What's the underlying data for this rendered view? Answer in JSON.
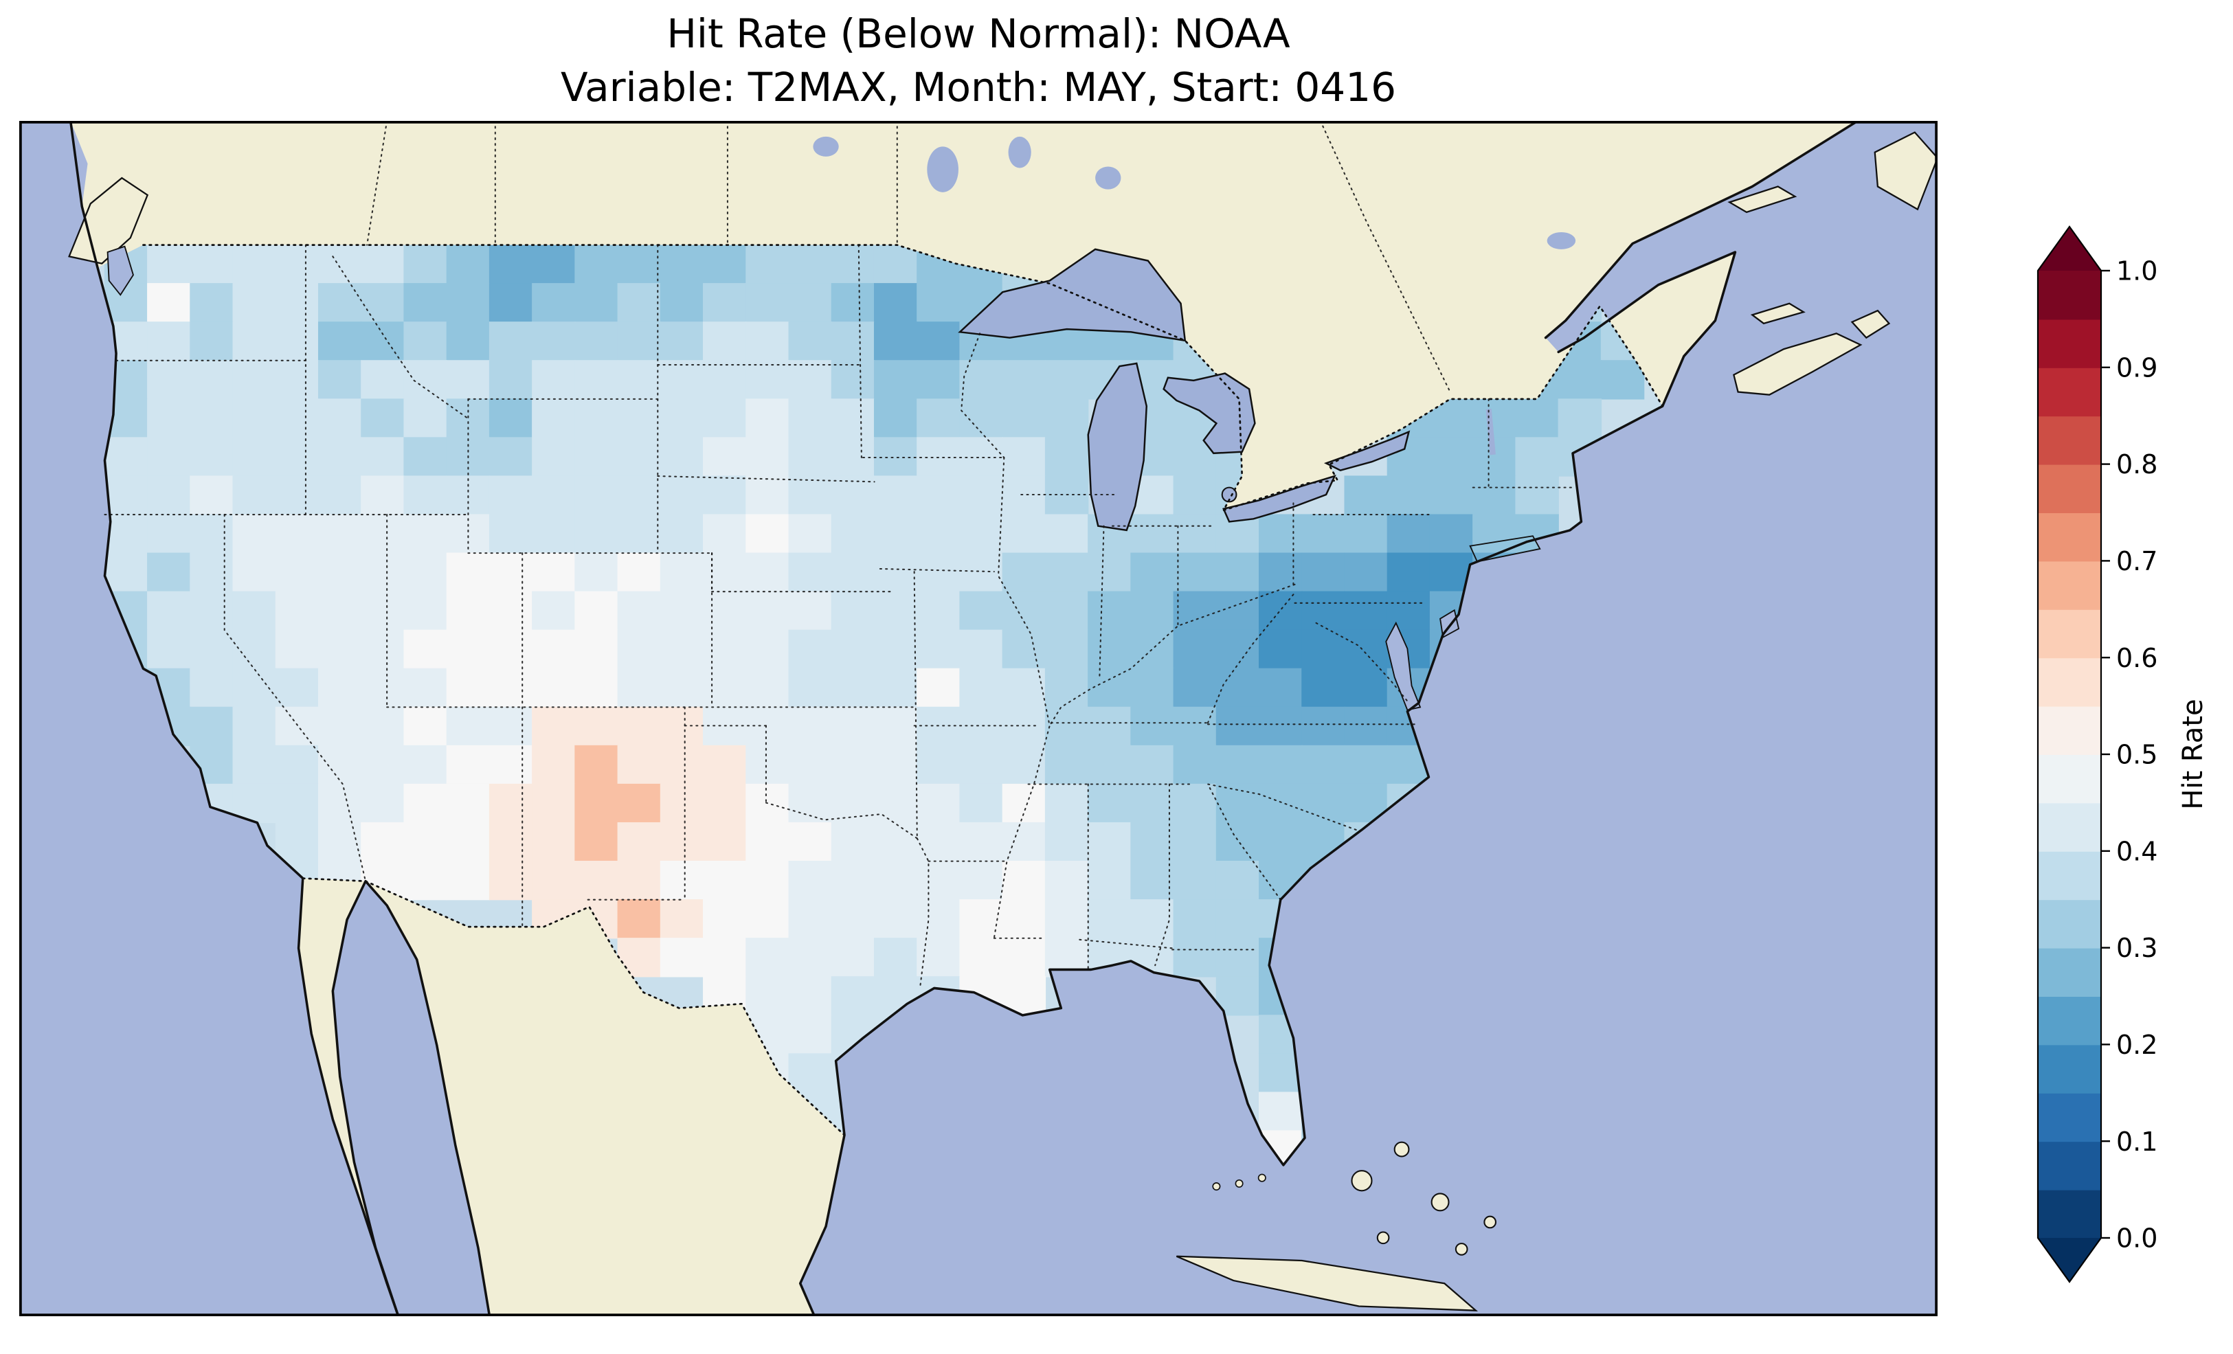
{
  "colors": {
    "background": "#ffffff",
    "ocean": "#a7b6dc",
    "land": "#f1eed6",
    "lake": "#9fb0d8",
    "coastline": "#111111",
    "state_border": "#1a1a1a",
    "text": "#000000",
    "cell_base": "#c9dfec"
  },
  "chart_data": {
    "type": "heatmap",
    "title": "Hit Rate (Below Normal): NOAA",
    "subtitle": "Variable: T2MAX, Month: MAY, Start: 0416",
    "region": "Contiguous United States gridded forecast hit rate",
    "legend_position": "right",
    "colorbar": {
      "label": "Hit Rate",
      "ticks": [
        "1.0",
        "0.9",
        "0.8",
        "0.7",
        "0.6",
        "0.5",
        "0.4",
        "0.3",
        "0.2",
        "0.1",
        "0.0"
      ],
      "min": 0.0,
      "max": 1.0,
      "step_per_band": 0.05,
      "extend": "both",
      "colormap": "RdBu_r",
      "colormap_anchors": [
        [
          "0.0",
          "#053061"
        ],
        [
          "0.1",
          "#2166ac"
        ],
        [
          "0.2",
          "#4393c3"
        ],
        [
          "0.3",
          "#92c5de"
        ],
        [
          "0.4",
          "#d1e5f0"
        ],
        [
          "0.5",
          "#f7f7f7"
        ],
        [
          "0.6",
          "#fddbc7"
        ],
        [
          "0.7",
          "#f4a582"
        ],
        [
          "0.8",
          "#d6604d"
        ],
        [
          "0.9",
          "#b2182b"
        ],
        [
          "1.0",
          "#67001f"
        ]
      ]
    },
    "grid_encoding": {
      "a": 0.2,
      "b": 0.25,
      "c": 0.3,
      "d": 0.35,
      "e": 0.4,
      "f": 0.45,
      "g": 0.5,
      "h": 0.55,
      "i": 0.65,
      ".": null
    },
    "grid_note": "Each character is one map cell (west to east per row, rows north to south) of estimated hit-rate values over the contiguous US; '.' = outside data region.",
    "hit_rate_grid": [
      "......................................",
      ".deeeeeedcbbccccddddccdd..............",
      ".dgdeeddccbccdcdddcbccdd..........dd..",
      ".eedeeccdcdddddeeddbbcccccd.......ccd.",
      ".deeeedeeedeeeeeeedccdddddd.......ccc.",
      ".deeeeededceeeeefeecdddd.ddd...ccccd..",
      ".eeeeeeedddeeeeffeedeeed.ddd...cccdd..",
      ".eefeeefeeeeeeeefeeeeeed.edd..ccccd...",
      ".eeeffffffeeeeefgfeeeeeeddddcccbbcc...",
      ".edefffffgggfgfffeeeeedddcccbbbaab....",
      ".deeeffffggfgfffffeeedddccbbaaaab.....",
      ".deeefffgggggffffeeeeeddccbbaaaab.....",
      ".ddeeefffggggffffeeegeedccbbbaabb.....",
      "..ddefffgffhhhhfffffeeeddccbbbbbc.....",
      "...deefffgghihhhffffeeedddccccccc.....",
      "...eeeffgghhiihhgffffegedddccccd......",
      ".....efggghhihhhggfffffeeddcccd.......",
      ".....efggghhhhgggfffffgfedddcc........",
      "...........hhihggffffggfeeddd.........",
      ".............hggfffefggfeeddc.........",
      "...............gffeeegg....dc.........",
      "................ffee........dc........",
      "................fee.........dd........",
      ".................ee.........fd........",
      ".................ee.........gd........",
      "............................d........."
    ]
  }
}
